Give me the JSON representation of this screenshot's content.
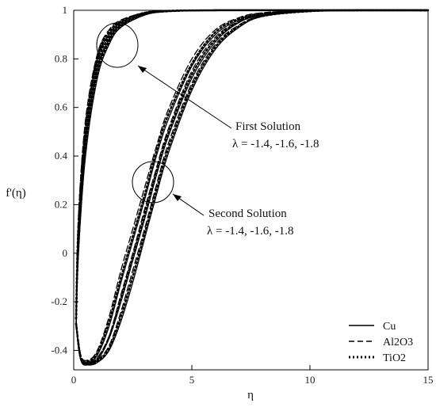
{
  "chart_data": {
    "type": "line",
    "title": "",
    "xlabel": "η",
    "ylabel": "f'(η)",
    "xlim": [
      0,
      15
    ],
    "ylim": [
      -0.48,
      1.0
    ],
    "xticks": [
      0,
      5,
      10,
      15
    ],
    "yticks": [
      -0.4,
      -0.2,
      0,
      0.2,
      0.4,
      0.6,
      0.8,
      1
    ],
    "grid": false,
    "legend": {
      "position": "bottom-right",
      "entries": [
        {
          "label": "Cu",
          "style": "solid"
        },
        {
          "label": "Al2O3",
          "style": "dashed"
        },
        {
          "label": "TiO2",
          "style": "dotted"
        }
      ]
    },
    "annotations": [
      {
        "title": "First Solution",
        "values": "λ = -1.4, -1.6, -1.8"
      },
      {
        "title": "Second Solution",
        "values": "λ = -1.4, -1.6, -1.8"
      }
    ],
    "solution_groups": [
      {
        "solution": "First Solution",
        "series": [
          {
            "fluid": "Cu",
            "lambda": -1.4,
            "x": [
              0.1,
              0.2,
              0.5,
              1.0,
              1.5,
              2.0,
              3.0,
              4.0,
              6.0,
              10.0,
              15.0
            ],
            "y": [
              -0.3,
              0.1,
              0.5,
              0.8,
              0.9,
              0.95,
              0.99,
              0.998,
              1.0,
              1.0,
              1.0
            ]
          },
          {
            "fluid": "Cu",
            "lambda": -1.6,
            "x": [
              0.1,
              0.2,
              0.5,
              1.0,
              1.5,
              2.0,
              3.0,
              4.0,
              6.0,
              10.0,
              15.0
            ],
            "y": [
              -0.3,
              0.05,
              0.45,
              0.76,
              0.88,
              0.94,
              0.985,
              0.997,
              1.0,
              1.0,
              1.0
            ]
          },
          {
            "fluid": "Cu",
            "lambda": -1.8,
            "x": [
              0.1,
              0.2,
              0.5,
              1.0,
              1.5,
              2.0,
              3.0,
              4.0,
              6.0,
              10.0,
              15.0
            ],
            "y": [
              -0.3,
              0.0,
              0.4,
              0.72,
              0.86,
              0.93,
              0.98,
              0.995,
              1.0,
              1.0,
              1.0
            ]
          },
          {
            "fluid": "Al2O3",
            "lambda": -1.4,
            "x": [
              0.1,
              0.2,
              0.5,
              1.0,
              1.5,
              2.0,
              3.0,
              4.0,
              6.0,
              10.0,
              15.0
            ],
            "y": [
              -0.25,
              0.15,
              0.55,
              0.82,
              0.92,
              0.96,
              0.99,
              0.998,
              1.0,
              1.0,
              1.0
            ]
          },
          {
            "fluid": "Al2O3",
            "lambda": -1.6,
            "x": [
              0.1,
              0.2,
              0.5,
              1.0,
              1.5,
              2.0,
              3.0,
              4.0,
              6.0,
              10.0,
              15.0
            ],
            "y": [
              -0.25,
              0.1,
              0.5,
              0.79,
              0.9,
              0.95,
              0.99,
              0.997,
              1.0,
              1.0,
              1.0
            ]
          },
          {
            "fluid": "Al2O3",
            "lambda": -1.8,
            "x": [
              0.1,
              0.2,
              0.5,
              1.0,
              1.5,
              2.0,
              3.0,
              4.0,
              6.0,
              10.0,
              15.0
            ],
            "y": [
              -0.25,
              0.05,
              0.45,
              0.75,
              0.88,
              0.94,
              0.985,
              0.996,
              1.0,
              1.0,
              1.0
            ]
          },
          {
            "fluid": "TiO2",
            "lambda": -1.4,
            "x": [
              0.1,
              0.2,
              0.5,
              1.0,
              1.5,
              2.0,
              3.0,
              4.0,
              6.0,
              10.0,
              15.0
            ],
            "y": [
              -0.27,
              0.12,
              0.52,
              0.81,
              0.91,
              0.955,
              0.99,
              0.998,
              1.0,
              1.0,
              1.0
            ]
          },
          {
            "fluid": "TiO2",
            "lambda": -1.6,
            "x": [
              0.1,
              0.2,
              0.5,
              1.0,
              1.5,
              2.0,
              3.0,
              4.0,
              6.0,
              10.0,
              15.0
            ],
            "y": [
              -0.27,
              0.08,
              0.48,
              0.78,
              0.89,
              0.945,
              0.987,
              0.997,
              1.0,
              1.0,
              1.0
            ]
          },
          {
            "fluid": "TiO2",
            "lambda": -1.8,
            "x": [
              0.1,
              0.2,
              0.5,
              1.0,
              1.5,
              2.0,
              3.0,
              4.0,
              6.0,
              10.0,
              15.0
            ],
            "y": [
              -0.27,
              0.03,
              0.43,
              0.74,
              0.87,
              0.935,
              0.983,
              0.996,
              1.0,
              1.0,
              1.0
            ]
          }
        ]
      },
      {
        "solution": "Second Solution",
        "series": [
          {
            "fluid": "Cu",
            "lambda": -1.4,
            "x": [
              0.1,
              0.3,
              0.6,
              1.0,
              1.5,
              2.0,
              2.5,
              3.0,
              3.5,
              4.0,
              5.0,
              6.0,
              7.0,
              8.0,
              10.0,
              12.0,
              15.0
            ],
            "y": [
              -0.3,
              -0.44,
              -0.45,
              -0.42,
              -0.3,
              -0.12,
              0.05,
              0.22,
              0.4,
              0.55,
              0.77,
              0.9,
              0.96,
              0.985,
              0.998,
              1.0,
              1.0
            ]
          },
          {
            "fluid": "Cu",
            "lambda": -1.6,
            "x": [
              0.1,
              0.3,
              0.6,
              1.0,
              1.5,
              2.0,
              2.5,
              3.0,
              3.5,
              4.0,
              5.0,
              6.0,
              7.0,
              8.0,
              10.0,
              12.0,
              15.0
            ],
            "y": [
              -0.3,
              -0.44,
              -0.46,
              -0.44,
              -0.35,
              -0.2,
              -0.03,
              0.14,
              0.32,
              0.48,
              0.72,
              0.87,
              0.95,
              0.98,
              0.997,
              1.0,
              1.0
            ]
          },
          {
            "fluid": "Cu",
            "lambda": -1.8,
            "x": [
              0.1,
              0.3,
              0.6,
              1.0,
              1.5,
              2.0,
              2.5,
              3.0,
              3.5,
              4.0,
              5.0,
              6.0,
              7.0,
              8.0,
              10.0,
              12.0,
              15.0
            ],
            "y": [
              -0.3,
              -0.44,
              -0.46,
              -0.45,
              -0.4,
              -0.28,
              -0.12,
              0.06,
              0.24,
              0.41,
              0.67,
              0.84,
              0.93,
              0.975,
              0.996,
              1.0,
              1.0
            ]
          },
          {
            "fluid": "Al2O3",
            "lambda": -1.4,
            "x": [
              0.1,
              0.3,
              0.6,
              1.0,
              1.5,
              2.0,
              2.5,
              3.0,
              3.5,
              4.0,
              5.0,
              6.0,
              7.0,
              8.0,
              10.0,
              12.0,
              15.0
            ],
            "y": [
              -0.28,
              -0.42,
              -0.44,
              -0.4,
              -0.26,
              -0.07,
              0.1,
              0.27,
              0.44,
              0.59,
              0.8,
              0.92,
              0.97,
              0.99,
              0.998,
              1.0,
              1.0
            ]
          },
          {
            "fluid": "Al2O3",
            "lambda": -1.6,
            "x": [
              0.1,
              0.3,
              0.6,
              1.0,
              1.5,
              2.0,
              2.5,
              3.0,
              3.5,
              4.0,
              5.0,
              6.0,
              7.0,
              8.0,
              10.0,
              12.0,
              15.0
            ],
            "y": [
              -0.28,
              -0.42,
              -0.45,
              -0.43,
              -0.34,
              -0.17,
              0.0,
              0.18,
              0.35,
              0.51,
              0.75,
              0.89,
              0.955,
              0.985,
              0.997,
              1.0,
              1.0
            ]
          },
          {
            "fluid": "Al2O3",
            "lambda": -1.8,
            "x": [
              0.1,
              0.3,
              0.6,
              1.0,
              1.5,
              2.0,
              2.5,
              3.0,
              3.5,
              4.0,
              5.0,
              6.0,
              7.0,
              8.0,
              10.0,
              12.0,
              15.0
            ],
            "y": [
              -0.28,
              -0.43,
              -0.45,
              -0.44,
              -0.38,
              -0.24,
              -0.07,
              0.1,
              0.28,
              0.45,
              0.7,
              0.86,
              0.94,
              0.978,
              0.996,
              1.0,
              1.0
            ]
          },
          {
            "fluid": "TiO2",
            "lambda": -1.4,
            "x": [
              0.1,
              0.3,
              0.6,
              1.0,
              1.5,
              2.0,
              2.5,
              3.0,
              3.5,
              4.0,
              5.0,
              6.0,
              7.0,
              8.0,
              10.0,
              12.0,
              15.0
            ],
            "y": [
              -0.29,
              -0.43,
              -0.445,
              -0.41,
              -0.28,
              -0.1,
              0.07,
              0.24,
              0.42,
              0.57,
              0.78,
              0.91,
              0.965,
              0.987,
              0.998,
              1.0,
              1.0
            ]
          },
          {
            "fluid": "TiO2",
            "lambda": -1.6,
            "x": [
              0.1,
              0.3,
              0.6,
              1.0,
              1.5,
              2.0,
              2.5,
              3.0,
              3.5,
              4.0,
              5.0,
              6.0,
              7.0,
              8.0,
              10.0,
              12.0,
              15.0
            ],
            "y": [
              -0.29,
              -0.43,
              -0.455,
              -0.435,
              -0.345,
              -0.185,
              -0.015,
              0.16,
              0.335,
              0.495,
              0.735,
              0.88,
              0.952,
              0.982,
              0.997,
              1.0,
              1.0
            ]
          },
          {
            "fluid": "TiO2",
            "lambda": -1.8,
            "x": [
              0.1,
              0.3,
              0.6,
              1.0,
              1.5,
              2.0,
              2.5,
              3.0,
              3.5,
              4.0,
              5.0,
              6.0,
              7.0,
              8.0,
              10.0,
              12.0,
              15.0
            ],
            "y": [
              -0.29,
              -0.435,
              -0.455,
              -0.445,
              -0.39,
              -0.26,
              -0.095,
              0.08,
              0.26,
              0.43,
              0.685,
              0.85,
              0.935,
              0.976,
              0.996,
              1.0,
              1.0
            ]
          }
        ]
      }
    ]
  }
}
